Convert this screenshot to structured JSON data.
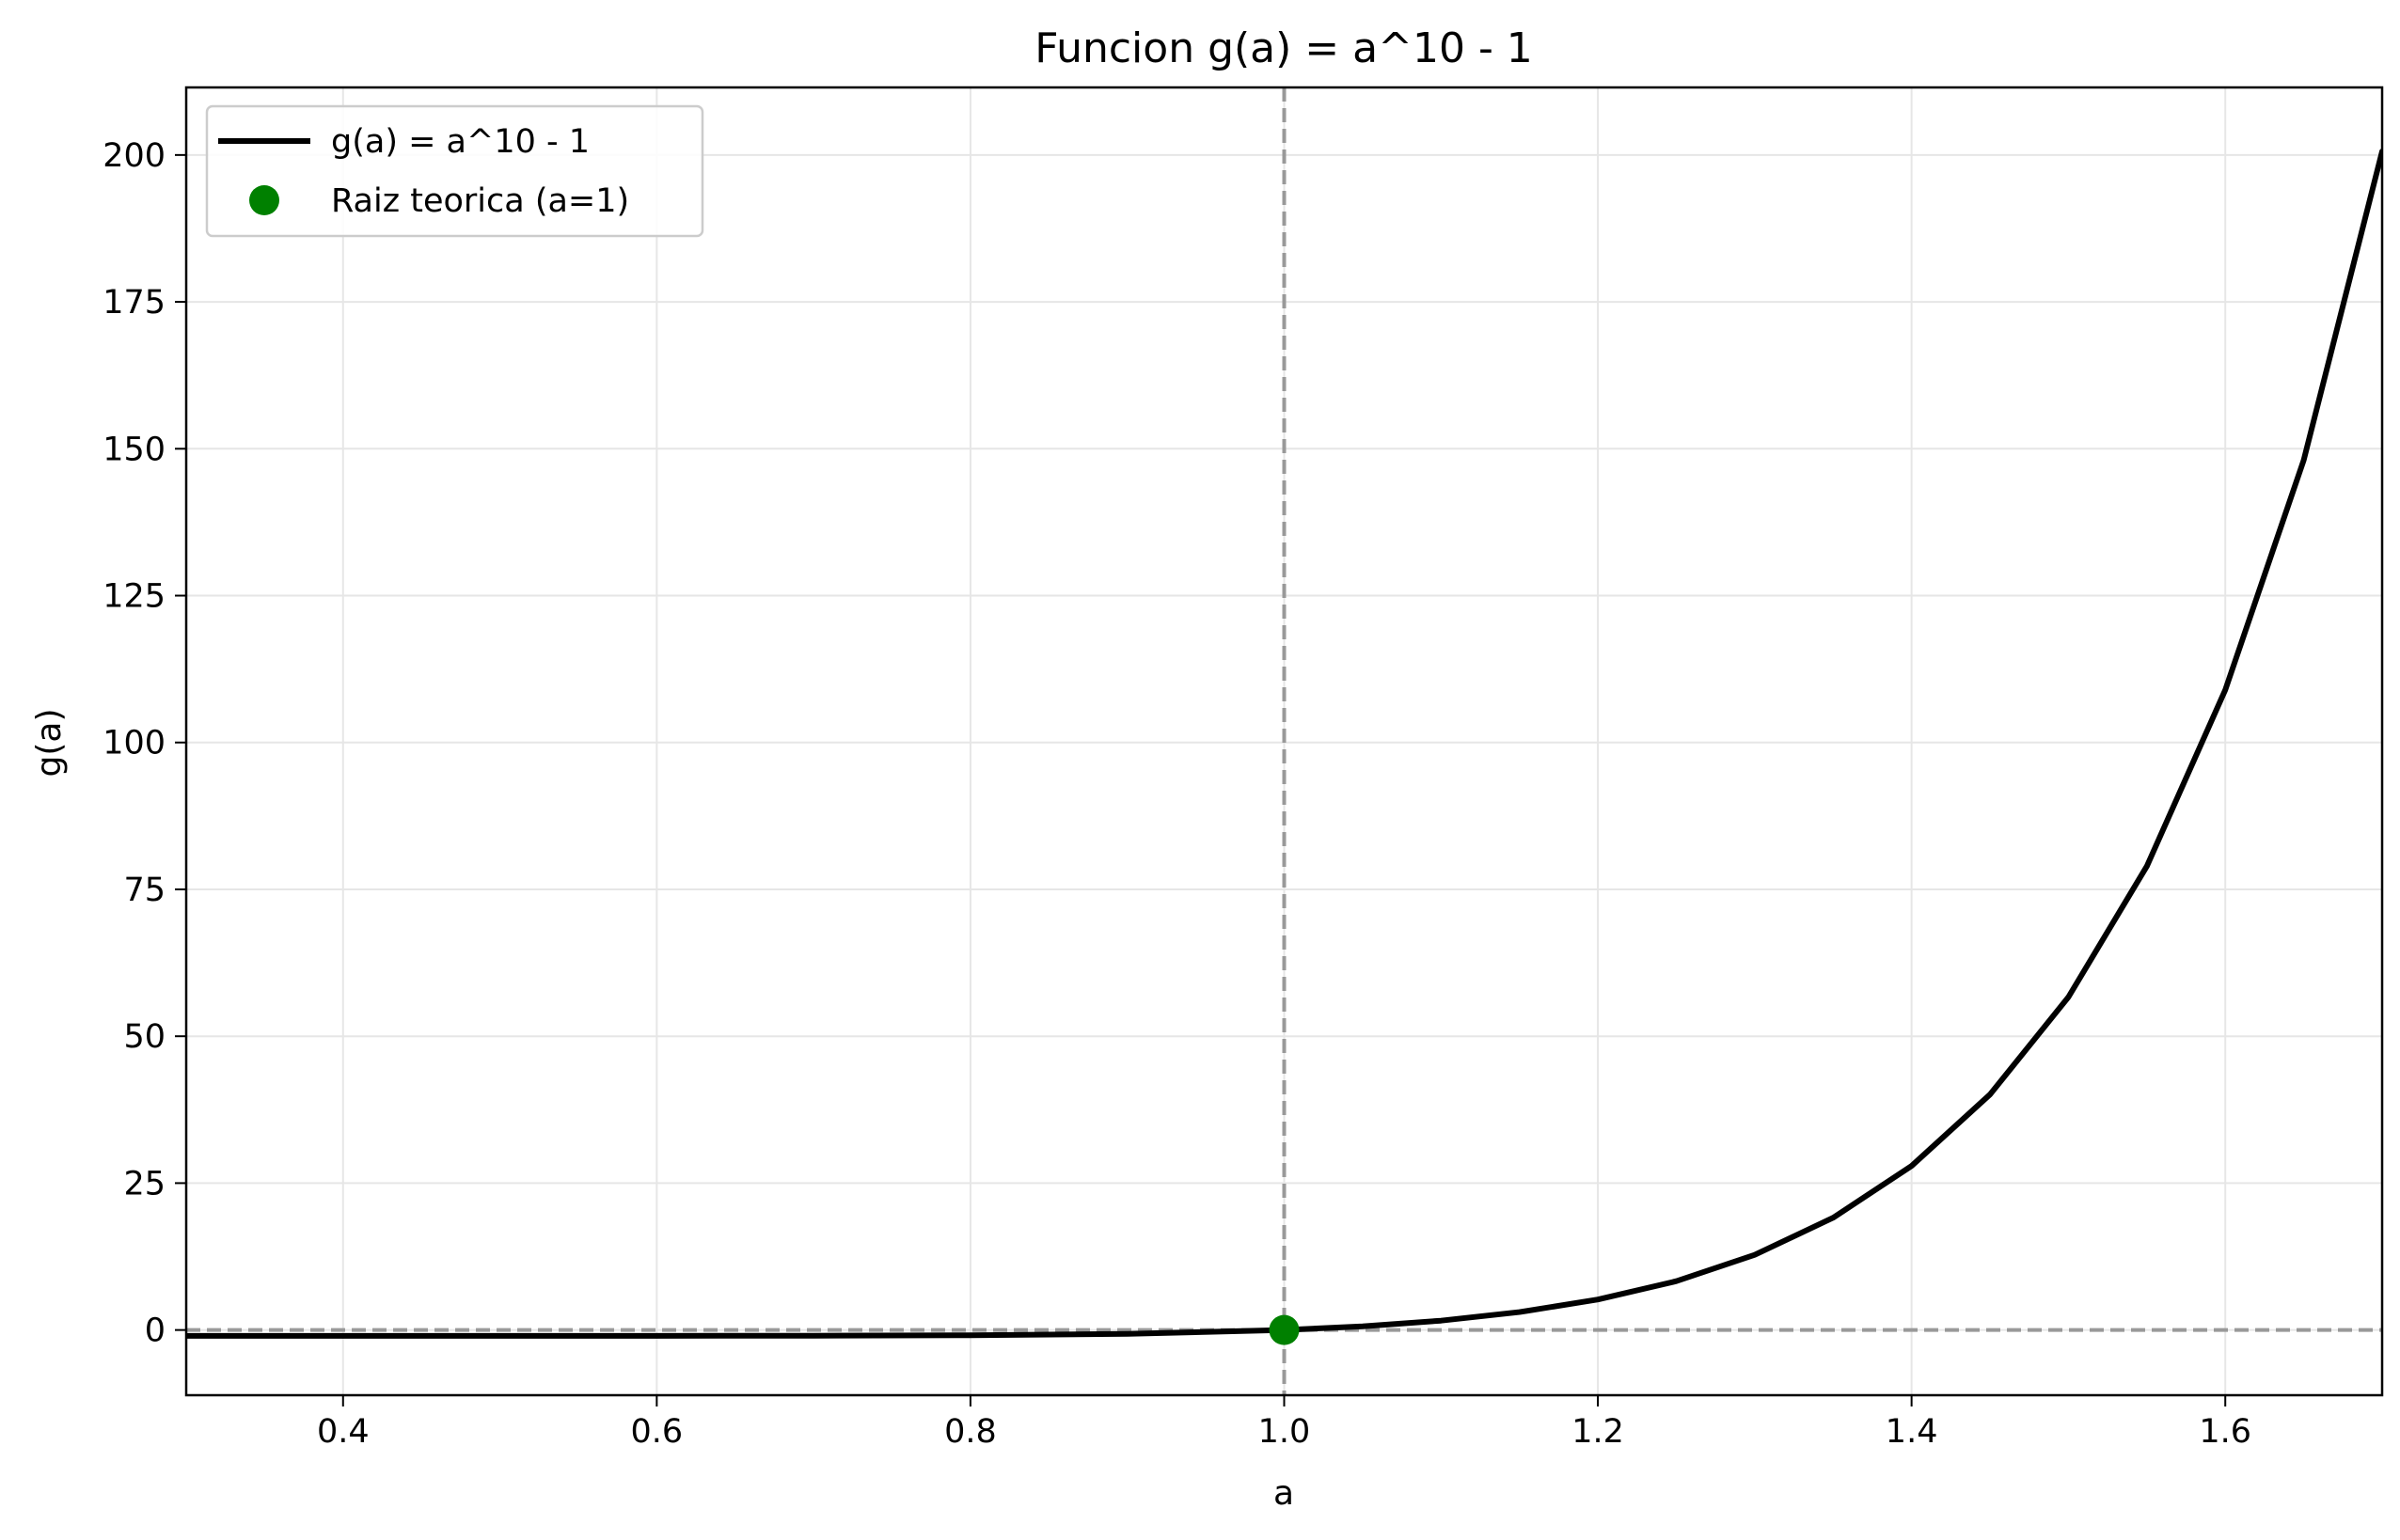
{
  "chart_data": {
    "type": "line",
    "title": "Funcion g(a) = a^10 - 1",
    "xlabel": "a",
    "ylabel": "g(a)",
    "xlim": [
      0.3,
      1.7
    ],
    "ylim": [
      -11.1,
      211.5
    ],
    "xticks": [
      0.4,
      0.6,
      0.8,
      1.0,
      1.2,
      1.4,
      1.6
    ],
    "xtick_labels": [
      "0.4",
      "0.6",
      "0.8",
      "1.0",
      "1.2",
      "1.4",
      "1.6"
    ],
    "yticks": [
      0,
      25,
      50,
      75,
      100,
      125,
      150,
      175,
      200
    ],
    "ytick_labels": [
      "0",
      "25",
      "50",
      "75",
      "100",
      "125",
      "150",
      "175",
      "200"
    ],
    "grid": true,
    "legend_position": "upper-left",
    "series": [
      {
        "name": "g(a) = a^10 - 1",
        "kind": "line",
        "color": "#000000",
        "x": [
          0.3,
          0.4,
          0.5,
          0.6,
          0.7,
          0.8,
          0.9,
          1.0,
          1.05,
          1.1,
          1.15,
          1.2,
          1.25,
          1.3,
          1.35,
          1.4,
          1.45,
          1.5,
          1.55,
          1.6,
          1.65,
          1.7
        ],
        "y": [
          -1.0,
          -1.0,
          -1.0,
          -0.99,
          -0.97,
          -0.89,
          -0.65,
          0.0,
          0.63,
          1.59,
          3.05,
          5.19,
          8.31,
          12.79,
          19.11,
          27.93,
          40.09,
          56.67,
          78.94,
          108.95,
          148.06,
          200.6
        ]
      },
      {
        "name": "Raiz teorica (a=1)",
        "kind": "marker",
        "color": "#008000",
        "x": [
          1.0
        ],
        "y": [
          0.0
        ]
      }
    ],
    "reference_lines": [
      {
        "orientation": "vertical",
        "value": 1.0,
        "style": "dashed",
        "color": "#999999"
      },
      {
        "orientation": "horizontal",
        "value": 0,
        "style": "dashed",
        "color": "#999999"
      }
    ]
  }
}
